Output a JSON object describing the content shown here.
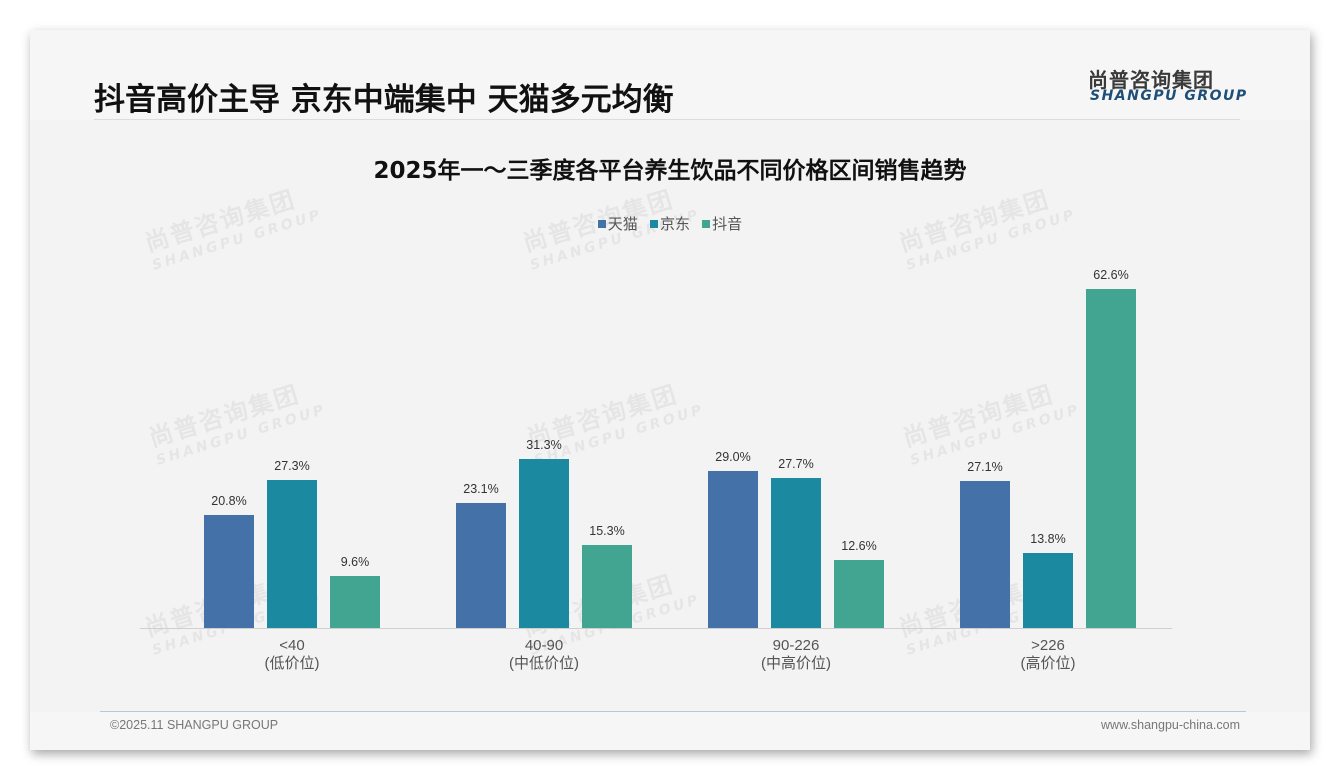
{
  "header": {
    "headline": "抖音高价主导 京东中端集中 天猫多元均衡",
    "logo_cn": "尚普咨询集团",
    "logo_en": "SHANGPU GROUP"
  },
  "watermark": {
    "cn": "尚普咨询集团",
    "en": "SHANGPU GROUP"
  },
  "footer": {
    "copyright": "©2025.11 SHANGPU GROUP",
    "website": "www.shangpu-china.com"
  },
  "colors": {
    "tmall": "#4472a8",
    "jd": "#1b8aa0",
    "douyin": "#42a592"
  },
  "chart_data": {
    "type": "bar",
    "title": "2025年一～三季度各平台养生饮品不同价格区间销售趋势",
    "xlabel": "",
    "ylabel": "",
    "ylim": [
      0,
      70
    ],
    "grid": false,
    "legend_position": "top",
    "categories": [
      "<40\n(低价位)",
      "40-90\n(中低价位)",
      "90-226\n(中高价位)",
      ">226\n(高价位)"
    ],
    "category_labels": [
      {
        "range": "<40",
        "tier": "(低价位)"
      },
      {
        "range": "40-90",
        "tier": "(中低价位)"
      },
      {
        "range": "90-226",
        "tier": "(中高价位)"
      },
      {
        "range": ">226",
        "tier": "(高价位)"
      }
    ],
    "series": [
      {
        "name": "天猫",
        "color": "#4472a8",
        "values": [
          20.8,
          23.1,
          29.0,
          27.1
        ],
        "labels": [
          "20.8%",
          "23.1%",
          "29.0%",
          "27.1%"
        ]
      },
      {
        "name": "京东",
        "color": "#1b8aa0",
        "values": [
          27.3,
          31.3,
          27.7,
          13.8
        ],
        "labels": [
          "27.3%",
          "31.3%",
          "27.7%",
          "13.8%"
        ]
      },
      {
        "name": "抖音",
        "color": "#42a592",
        "values": [
          9.6,
          15.3,
          12.6,
          62.6
        ],
        "labels": [
          "9.6%",
          "15.3%",
          "12.6%",
          "62.6%"
        ]
      }
    ]
  }
}
